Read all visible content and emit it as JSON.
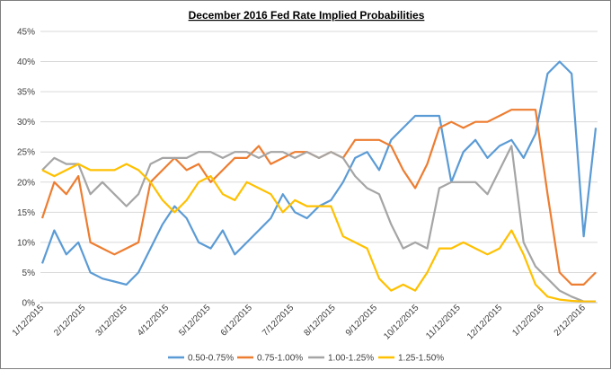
{
  "chart_data": {
    "type": "line",
    "title": "December 2016 Fed Rate Implied Probabilities",
    "xlabel": "",
    "ylabel": "",
    "ylim": [
      0,
      45
    ],
    "y_ticks": [
      "0%",
      "5%",
      "10%",
      "15%",
      "20%",
      "25%",
      "30%",
      "35%",
      "40%",
      "45%"
    ],
    "x_ticks": [
      "1/12/2015",
      "2/12/2015",
      "3/12/2015",
      "4/12/2015",
      "5/12/2015",
      "6/12/2015",
      "7/12/2015",
      "8/12/2015",
      "9/12/2015",
      "10/12/2015",
      "11/12/2015",
      "12/12/2015",
      "1/12/2016",
      "2/12/2016"
    ],
    "grid": true,
    "legend_position": "bottom",
    "x": [
      "1/12/2015",
      "1/21/2015",
      "1/30/2015",
      "2/8/2015",
      "2/17/2015",
      "2/26/2015",
      "3/7/2015",
      "3/16/2015",
      "3/25/2015",
      "4/3/2015",
      "4/12/2015",
      "4/21/2015",
      "4/30/2015",
      "5/9/2015",
      "5/18/2015",
      "5/27/2015",
      "6/5/2015",
      "6/14/2015",
      "6/23/2015",
      "7/2/2015",
      "7/11/2015",
      "7/20/2015",
      "7/29/2015",
      "8/7/2015",
      "8/16/2015",
      "8/25/2015",
      "9/3/2015",
      "9/12/2015",
      "9/21/2015",
      "9/30/2015",
      "10/9/2015",
      "10/18/2015",
      "10/27/2015",
      "11/5/2015",
      "11/14/2015",
      "11/23/2015",
      "12/2/2015",
      "12/11/2015",
      "12/20/2015",
      "12/29/2015",
      "1/7/2016",
      "1/16/2016",
      "1/25/2016",
      "2/3/2016",
      "2/12/2016",
      "2/21/2016",
      "2/25/2016"
    ],
    "series": [
      {
        "name": "0.50-0.75%",
        "color": "#5b9bd5",
        "values": [
          6.5,
          12,
          8,
          10,
          5,
          4,
          3.5,
          3,
          5,
          9,
          13,
          16,
          14,
          10,
          9,
          12,
          8,
          10,
          12,
          14,
          18,
          15,
          14,
          16,
          17,
          20,
          24,
          25,
          22,
          27,
          29,
          31,
          31,
          31,
          20,
          25,
          27,
          24,
          26,
          27,
          24,
          28,
          38,
          40,
          38,
          11,
          29
        ]
      },
      {
        "name": "0.75-1.00%",
        "color": "#ed7d31",
        "values": [
          14,
          20,
          18,
          21,
          10,
          9,
          8,
          9,
          10,
          20,
          22,
          24,
          22,
          23,
          20,
          22,
          24,
          24,
          26,
          23,
          24,
          25,
          25,
          24,
          25,
          24,
          27,
          27,
          27,
          26,
          22,
          19,
          23,
          29,
          30,
          29,
          30,
          30,
          31,
          32,
          32,
          32,
          18,
          5,
          3,
          3,
          5
        ]
      },
      {
        "name": "1.00-1.25%",
        "color": "#a5a5a5",
        "values": [
          22,
          24,
          23,
          23,
          18,
          20,
          18,
          16,
          18,
          23,
          24,
          24,
          24,
          25,
          25,
          24,
          25,
          25,
          24,
          25,
          25,
          24,
          25,
          24,
          25,
          24,
          21,
          19,
          18,
          13,
          9,
          10,
          9,
          19,
          20,
          20,
          20,
          18,
          22,
          26,
          10,
          6,
          4,
          2,
          1,
          0.2,
          0.2
        ]
      },
      {
        "name": "1.25-1.50%",
        "color": "#ffc000",
        "values": [
          22,
          21,
          22,
          23,
          22,
          22,
          22,
          23,
          22,
          20,
          17,
          15,
          17,
          20,
          21,
          18,
          17,
          20,
          19,
          18,
          15,
          17,
          16,
          16,
          16,
          11,
          10,
          9,
          4,
          2,
          3,
          2,
          5,
          9,
          9,
          10,
          9,
          8,
          9,
          12,
          8,
          3,
          1,
          0.5,
          0.3,
          0.2,
          0.2
        ]
      }
    ]
  }
}
